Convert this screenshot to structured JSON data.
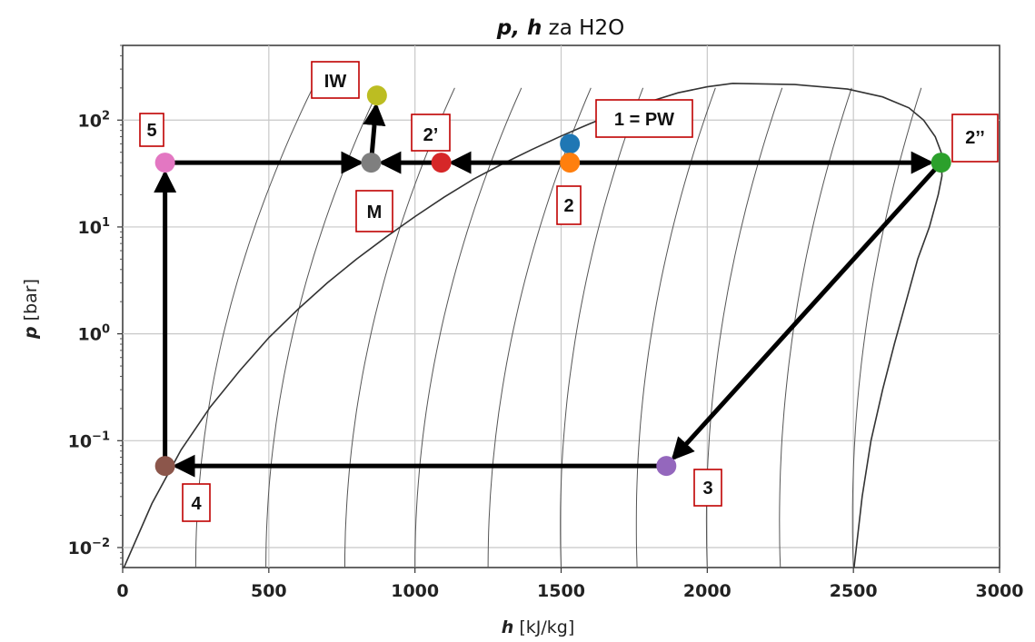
{
  "chart_data": {
    "type": "scatter",
    "title_bold": "p, h",
    "title_rest": " za H2O",
    "xlabel_bold": "h",
    "xlabel_rest": " [kJ/kg]",
    "ylabel_bold": "p",
    "ylabel_rest": " [bar]",
    "xlim": [
      0,
      3000
    ],
    "ylim": [
      0.0065,
      500
    ],
    "yscale": "log",
    "grid": true,
    "x_ticks": [
      0,
      500,
      1000,
      1500,
      2000,
      2500,
      3000
    ],
    "x_tick_labels": [
      "0",
      "500",
      "1000",
      "1500",
      "2000",
      "2500",
      "3000"
    ],
    "y_ticks": [
      0.01,
      0.1,
      1,
      10,
      100
    ],
    "y_tick_labels": [
      {
        "base": "10",
        "exp": "−2"
      },
      {
        "base": "10",
        "exp": "−1"
      },
      {
        "base": "10",
        "exp": "0"
      },
      {
        "base": "10",
        "exp": "1"
      },
      {
        "base": "10",
        "exp": "2"
      }
    ],
    "points": [
      {
        "id": "pw",
        "label": "1 = PW",
        "h": 1530,
        "p": 60,
        "color": "#1f77b4"
      },
      {
        "id": "p2",
        "label": "2",
        "h": 1530,
        "p": 40,
        "color": "#ff7f0e"
      },
      {
        "id": "p2prime",
        "label": "2’",
        "h": 1090,
        "p": 40,
        "color": "#d62728"
      },
      {
        "id": "p2dbl",
        "label": "2’’",
        "h": 2800,
        "p": 40,
        "color": "#2ca02c"
      },
      {
        "id": "p3",
        "label": "3",
        "h": 1860,
        "p": 0.058,
        "color": "#9467bd"
      },
      {
        "id": "p4",
        "label": "4",
        "h": 145,
        "p": 0.058,
        "color": "#8c564b"
      },
      {
        "id": "p5",
        "label": "5",
        "h": 145,
        "p": 40,
        "color": "#e377c2"
      },
      {
        "id": "pm",
        "label": "M",
        "h": 850,
        "p": 40,
        "color": "#7f7f7f"
      },
      {
        "id": "iw",
        "label": "IW",
        "h": 870,
        "p": 170,
        "color": "#bcbd22"
      }
    ],
    "arrows": [
      {
        "from": [
          1530,
          40
        ],
        "to": [
          1090,
          40
        ]
      },
      {
        "from": [
          1530,
          40
        ],
        "to": [
          2800,
          40
        ]
      },
      {
        "from": [
          1090,
          40
        ],
        "to": [
          850,
          40
        ]
      },
      {
        "from": [
          145,
          40
        ],
        "to": [
          850,
          40
        ]
      },
      {
        "from": [
          850,
          40
        ],
        "to": [
          870,
          170
        ]
      },
      {
        "from": [
          2800,
          40
        ],
        "to": [
          1860,
          0.058
        ]
      },
      {
        "from": [
          1860,
          0.058
        ],
        "to": [
          145,
          0.058
        ]
      },
      {
        "from": [
          145,
          0.058
        ],
        "to": [
          145,
          40
        ]
      }
    ],
    "saturation_dome": {
      "liquid": [
        [
          0,
          0.0061
        ],
        [
          100,
          0.0258
        ],
        [
          200,
          0.082
        ],
        [
          300,
          0.207
        ],
        [
          400,
          0.45
        ],
        [
          500,
          0.92
        ],
        [
          600,
          1.7
        ],
        [
          700,
          3.0
        ],
        [
          800,
          5.0
        ],
        [
          900,
          8.0
        ],
        [
          1000,
          12.5
        ],
        [
          1100,
          19.0
        ],
        [
          1200,
          28.0
        ],
        [
          1300,
          39.0
        ],
        [
          1400,
          53.0
        ],
        [
          1500,
          71.0
        ],
        [
          1600,
          93.0
        ],
        [
          1700,
          120.0
        ],
        [
          1800,
          148.0
        ],
        [
          1900,
          180.0
        ],
        [
          2000,
          205.0
        ],
        [
          2087,
          220.6
        ]
      ],
      "vapor": [
        [
          2501,
          0.0061
        ],
        [
          2510,
          0.01
        ],
        [
          2530,
          0.03
        ],
        [
          2560,
          0.1
        ],
        [
          2600,
          0.3
        ],
        [
          2640,
          0.8
        ],
        [
          2680,
          2.0
        ],
        [
          2720,
          5.0
        ],
        [
          2760,
          10.0
        ],
        [
          2790,
          20.0
        ],
        [
          2803,
          30.0
        ],
        [
          2800,
          50.0
        ],
        [
          2780,
          70.0
        ],
        [
          2740,
          100.0
        ],
        [
          2690,
          130.0
        ],
        [
          2600,
          165.0
        ],
        [
          2480,
          195.0
        ],
        [
          2300,
          215.0
        ],
        [
          2087,
          220.6
        ]
      ]
    },
    "temperature_curves_h": [
      250,
      490,
      760,
      1000,
      1250,
      1500,
      1760,
      2000,
      2250,
      2500
    ]
  },
  "labels": {
    "pw": "1 = PW",
    "p2": "2",
    "p2prime": "2’",
    "p2dbl": "2’’",
    "p3": "3",
    "p4": "4",
    "p5": "5",
    "pm": "M",
    "iw": "IW"
  }
}
